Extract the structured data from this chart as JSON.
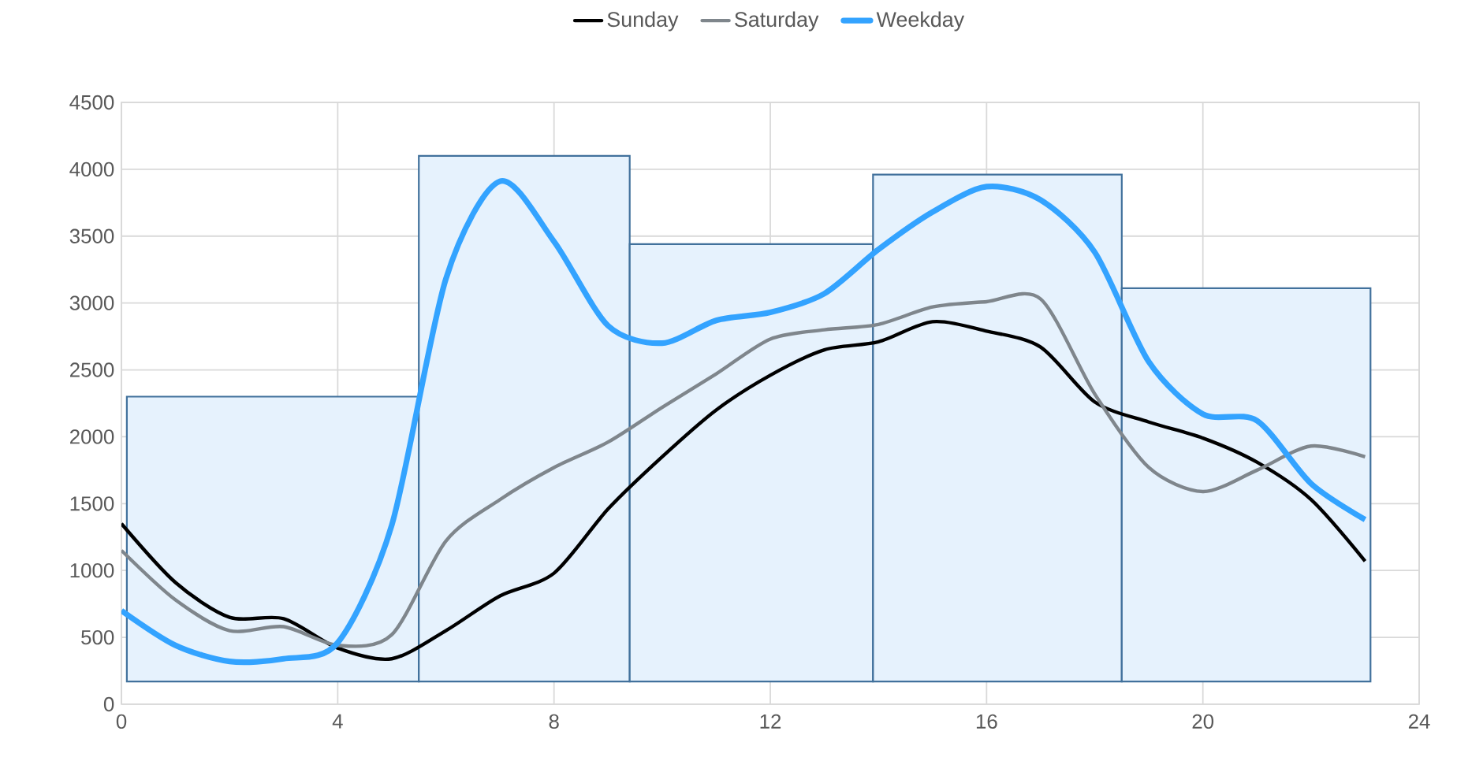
{
  "chart_data": {
    "type": "line",
    "x": [
      0,
      1,
      2,
      3,
      4,
      5,
      6,
      7,
      8,
      9,
      10,
      11,
      12,
      13,
      14,
      15,
      16,
      17,
      18,
      19,
      20,
      21,
      22,
      23
    ],
    "xlim": [
      0,
      24
    ],
    "xticks": [
      0,
      4,
      8,
      12,
      16,
      20,
      24
    ],
    "ylim": [
      0,
      4500
    ],
    "yticks": [
      0,
      500,
      1000,
      1500,
      2000,
      2500,
      3000,
      3500,
      4000,
      4500
    ],
    "grid": true,
    "legend": "top",
    "series": [
      {
        "type": "histogram",
        "color": "#e6f2fd",
        "bins": [
          0.1,
          5.5,
          9.4,
          13.9,
          18.5,
          23.1
        ],
        "base": [
          170,
          170,
          170,
          170,
          170
        ],
        "values": [
          2130,
          3930,
          3270,
          3790,
          2940
        ]
      },
      {
        "name": "Sunday",
        "color": "#000000",
        "values": [
          1350,
          910,
          650,
          640,
          420,
          340,
          550,
          810,
          980,
          1460,
          1850,
          2200,
          2460,
          2650,
          2710,
          2860,
          2790,
          2670,
          2260,
          2110,
          1990,
          1810,
          1530,
          1070
        ]
      },
      {
        "name": "Saturday",
        "color": "#7f868c",
        "values": [
          1150,
          780,
          550,
          580,
          440,
          520,
          1220,
          1530,
          1770,
          1960,
          2220,
          2470,
          2730,
          2800,
          2840,
          2970,
          3010,
          3030,
          2320,
          1770,
          1590,
          1750,
          1930,
          1850
        ]
      },
      {
        "name": "Weekday",
        "color": "#33a3ff",
        "values": [
          700,
          440,
          320,
          340,
          460,
          1340,
          3180,
          3910,
          3460,
          2830,
          2700,
          2870,
          2930,
          3070,
          3400,
          3680,
          3870,
          3770,
          3380,
          2560,
          2170,
          2120,
          1650,
          1380
        ]
      }
    ]
  }
}
